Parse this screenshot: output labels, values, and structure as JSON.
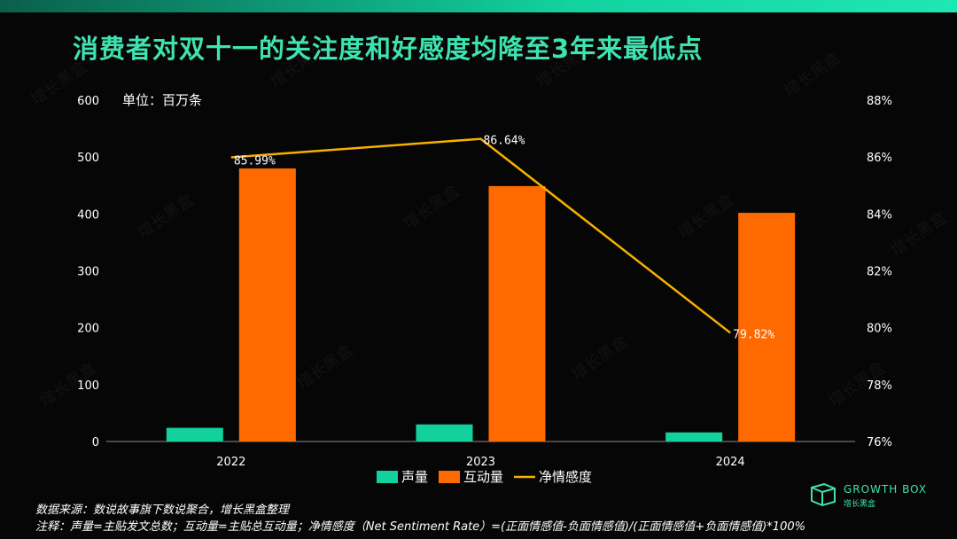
{
  "title": "消费者对双十一的关注度和好感度均降至3年来最低点",
  "unit": "单位：百万条",
  "watermark": "增长黑盒",
  "chart_data": {
    "type": "bar",
    "categories": [
      "2022",
      "2023",
      "2024"
    ],
    "series": [
      {
        "name": "声量",
        "kind": "bar",
        "axis": "left",
        "color": "#12d19c",
        "values": [
          24,
          30,
          16
        ]
      },
      {
        "name": "互动量",
        "kind": "bar",
        "axis": "left",
        "color": "#ff6a00",
        "values": [
          480,
          449,
          402
        ]
      },
      {
        "name": "净情感度",
        "kind": "line",
        "axis": "right",
        "color": "#f6b000",
        "values": [
          85.99,
          86.64,
          79.82
        ],
        "labels": [
          "85.99%",
          "86.64%",
          "79.82%"
        ]
      }
    ],
    "y_left": {
      "min": 0,
      "max": 600,
      "ticks": [
        "0",
        "100",
        "200",
        "300",
        "400",
        "500",
        "600"
      ]
    },
    "y_right": {
      "min": 76,
      "max": 88,
      "ticks": [
        "76%",
        "78%",
        "80%",
        "82%",
        "84%",
        "86%",
        "88%"
      ]
    },
    "legend_position": "bottom-center",
    "grid": false
  },
  "footer": {
    "source": "数据来源：数说故事旗下数说聚合，增长黑盒整理",
    "note": "注释：声量=主贴发文总数；互动量=主贴总互动量；净情感度（Net Sentiment Rate）=(正面情感值-负面情感值)/(正面情感值+负面情感值)*100%"
  },
  "logo": {
    "text": "GROWTH BOX",
    "sub": "增长黑盒"
  }
}
